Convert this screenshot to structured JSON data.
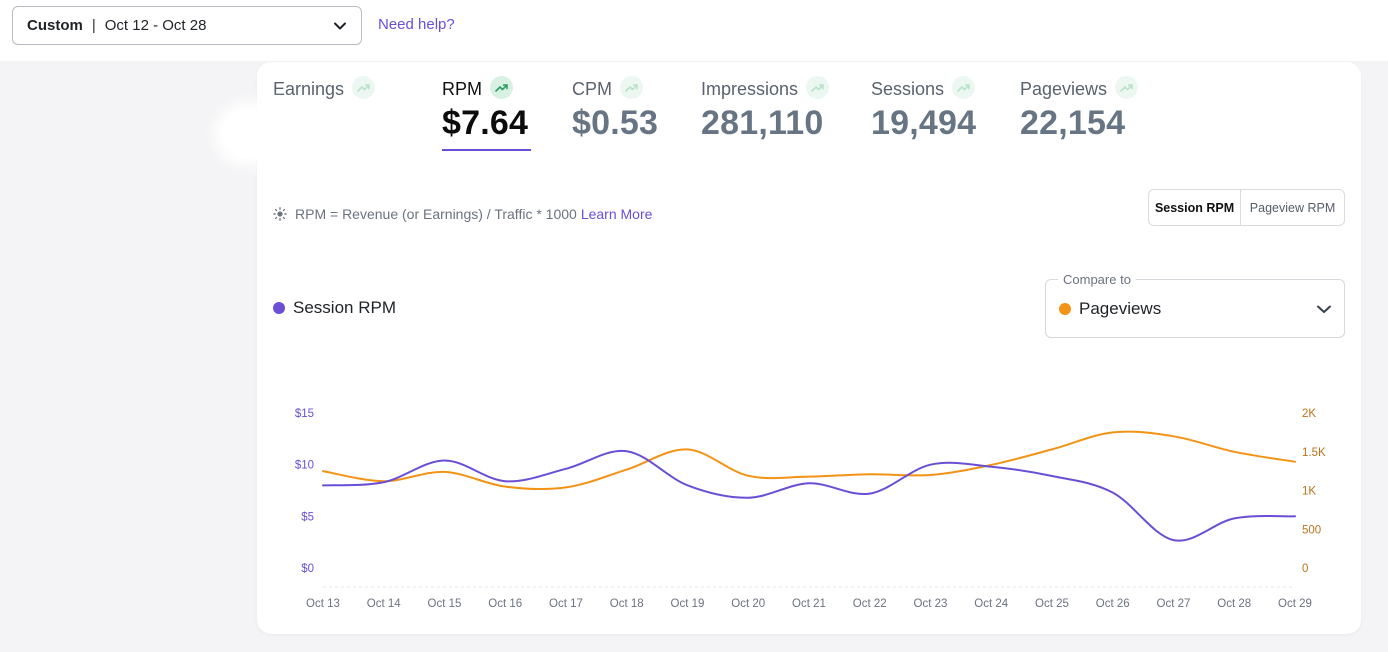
{
  "header": {
    "date_mode": "Custom",
    "date_separator": "|",
    "date_range": "Oct 12 - Oct 28",
    "help_link": "Need help?"
  },
  "metrics": [
    {
      "label": "Earnings",
      "value": ""
    },
    {
      "label": "RPM",
      "value": "$7.64",
      "active": true
    },
    {
      "label": "CPM",
      "value": "$0.53"
    },
    {
      "label": "Impressions",
      "value": "281,110"
    },
    {
      "label": "Sessions",
      "value": "19,494"
    },
    {
      "label": "Pageviews",
      "value": "22,154"
    }
  ],
  "info": {
    "text": "RPM = Revenue (or Earnings) / Traffic * 1000",
    "link": "Learn More"
  },
  "rpm_toggle": {
    "options": [
      "Session RPM",
      "Pageview RPM"
    ],
    "selected": "Session RPM"
  },
  "legend": {
    "primary": "Session RPM"
  },
  "compare": {
    "label": "Compare to",
    "value": "Pageviews"
  },
  "colors": {
    "primary": "#6a4fd6",
    "secondary": "#f39315",
    "accent_link": "#6a4fd6"
  },
  "icons": [
    "chevron-down-icon",
    "trend-up-icon",
    "sun-icon"
  ],
  "chart_data": {
    "type": "line",
    "x": [
      "Oct 13",
      "Oct 14",
      "Oct 15",
      "Oct 16",
      "Oct 17",
      "Oct 18",
      "Oct 19",
      "Oct 20",
      "Oct 21",
      "Oct 22",
      "Oct 23",
      "Oct 24",
      "Oct 25",
      "Oct 26",
      "Oct 27",
      "Oct 28",
      "Oct 29"
    ],
    "series": [
      {
        "name": "Session RPM",
        "axis": "left",
        "values": [
          8.0,
          8.3,
          10.4,
          8.4,
          9.6,
          11.3,
          8.0,
          6.8,
          8.2,
          7.2,
          10.0,
          9.8,
          8.9,
          7.3,
          2.7,
          4.8,
          5.0
        ]
      },
      {
        "name": "Pageviews",
        "axis": "right",
        "values": [
          1250,
          1120,
          1240,
          1050,
          1040,
          1270,
          1530,
          1190,
          1180,
          1210,
          1200,
          1330,
          1530,
          1750,
          1700,
          1500,
          1370
        ]
      }
    ],
    "y_left": {
      "ticks": [
        "$15",
        "$10",
        "$5",
        "$0"
      ],
      "range": [
        0,
        15
      ]
    },
    "y_right": {
      "ticks": [
        "2K",
        "1.5K",
        "1K",
        "500",
        "0"
      ],
      "range": [
        0,
        2000
      ]
    },
    "grid": false,
    "legend_placement": "top-left"
  }
}
